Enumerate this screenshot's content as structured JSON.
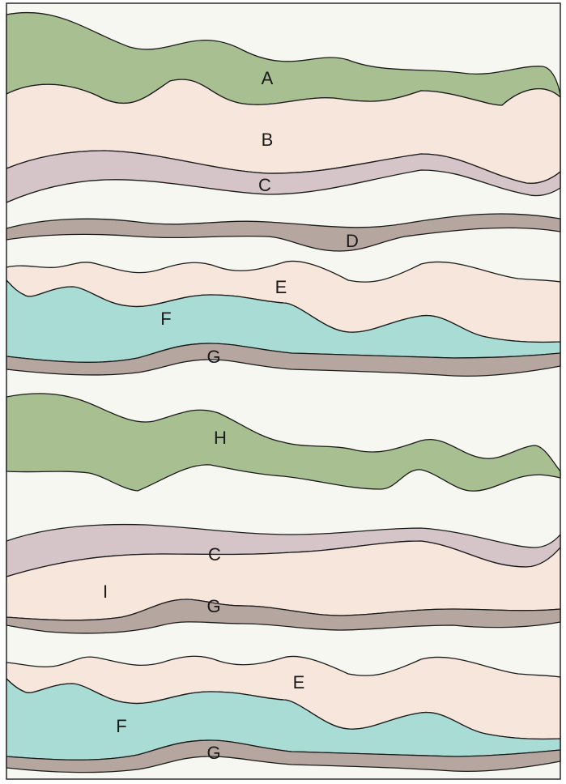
{
  "colors": {
    "background": "#f7f7f1",
    "border": "#2a2a2a",
    "green": "#a7bf91",
    "peach": "#f6e6db",
    "mauve": "#d6c5c8",
    "brown": "#b5a69f",
    "teal": "#a9dcd5"
  },
  "layers": [
    {
      "id": "A",
      "label": "A",
      "fill": "green"
    },
    {
      "id": "B",
      "label": "B",
      "fill": "peach"
    },
    {
      "id": "C1",
      "label": "C",
      "fill": "mauve"
    },
    {
      "id": "D",
      "label": "D",
      "fill": "brown"
    },
    {
      "id": "E1",
      "label": "E",
      "fill": "peach"
    },
    {
      "id": "F1",
      "label": "F",
      "fill": "teal"
    },
    {
      "id": "G1",
      "label": "G",
      "fill": "brown"
    },
    {
      "id": "H",
      "label": "H",
      "fill": "green"
    },
    {
      "id": "C2",
      "label": "C",
      "fill": "mauve"
    },
    {
      "id": "I",
      "label": "I",
      "fill": "peach"
    },
    {
      "id": "G2",
      "label": "G",
      "fill": "brown"
    },
    {
      "id": "E2",
      "label": "E",
      "fill": "peach"
    },
    {
      "id": "F2",
      "label": "F",
      "fill": "teal"
    },
    {
      "id": "G3",
      "label": "G",
      "fill": "brown"
    }
  ]
}
